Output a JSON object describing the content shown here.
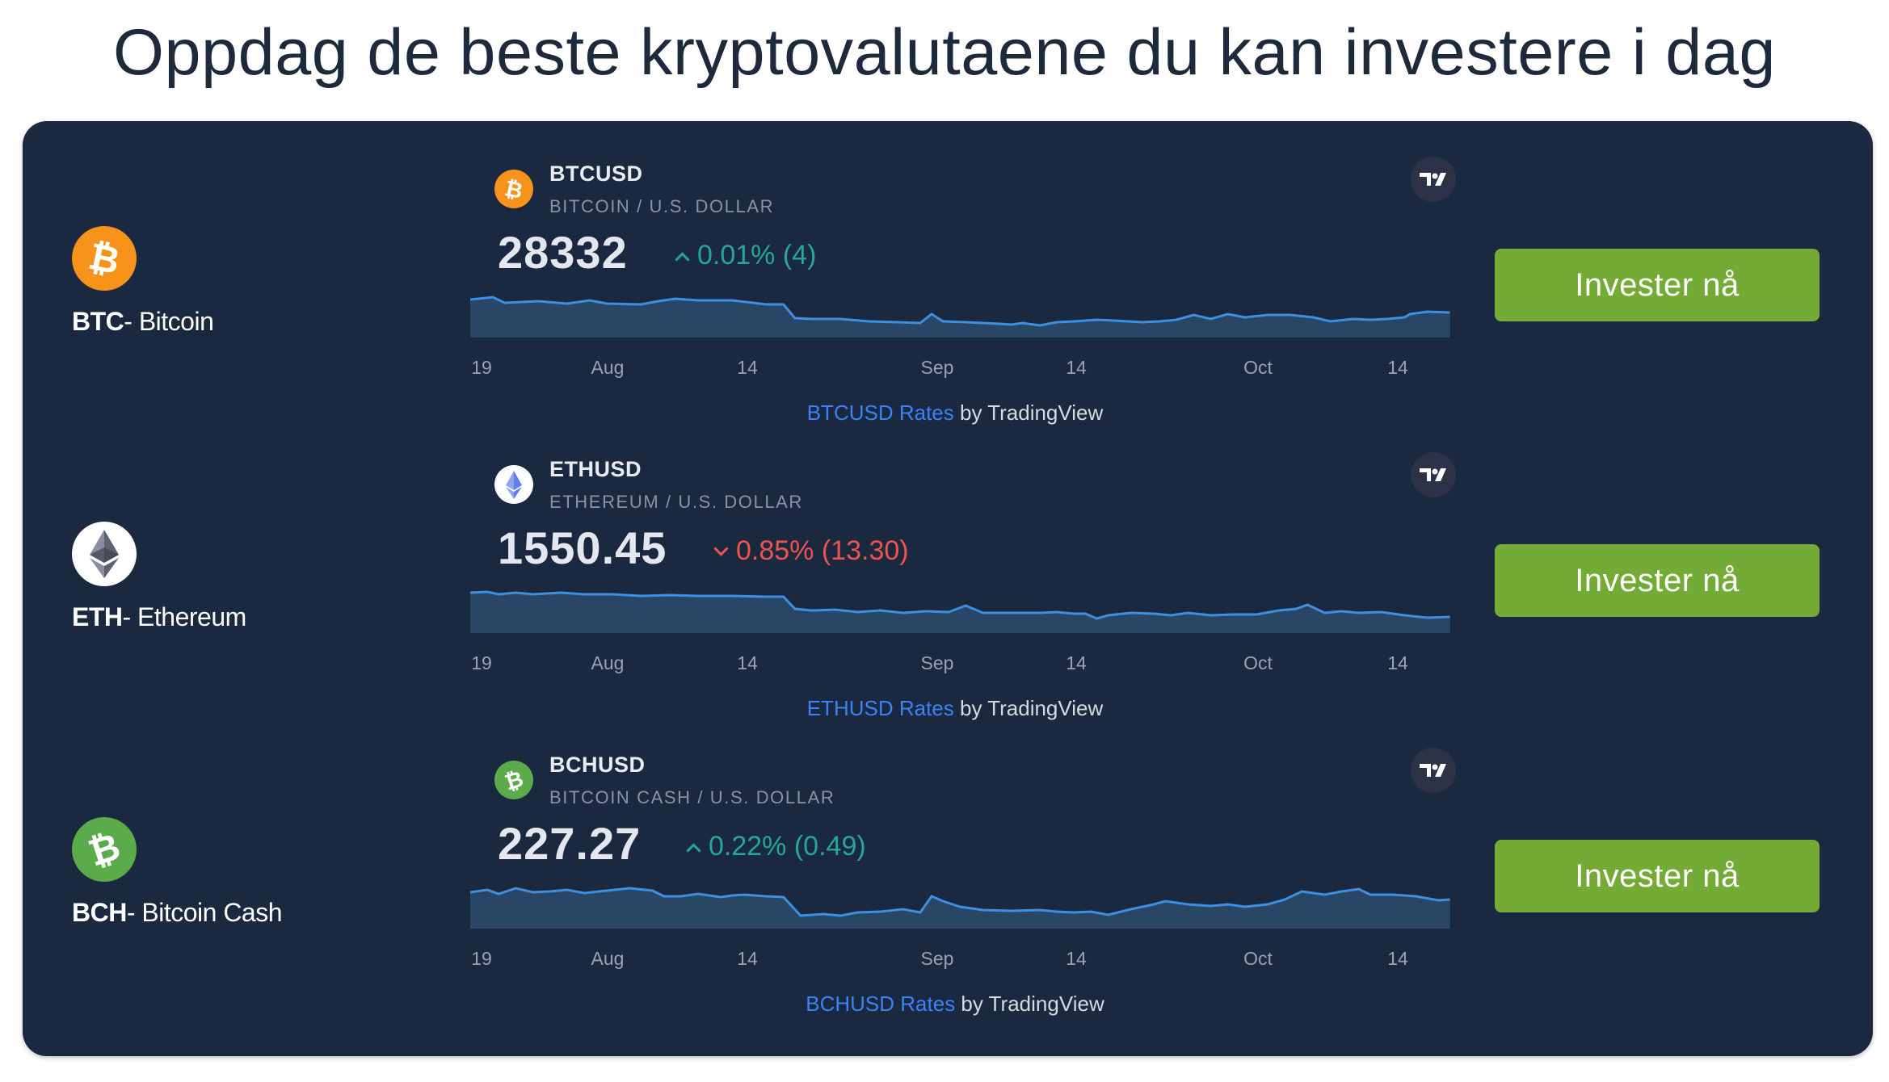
{
  "page": {
    "title": "Oppdag de beste kryptovalutaene du kan investere i dag"
  },
  "colors": {
    "panel_bg": "#1a2940",
    "button": "#74ab36",
    "up": "#26a69a",
    "down": "#ef5350",
    "link": "#3b82f6",
    "btc": "#f7931a",
    "bch": "#5aab4a"
  },
  "rows": [
    {
      "coin": {
        "ticker": "BTC",
        "name": "- Bitcoin",
        "icon": "bitcoin-icon"
      },
      "widget": {
        "symbol": "BTCUSD",
        "description": "BITCOIN / U.S. DOLLAR",
        "price": "28332",
        "change": "0.01% (4)",
        "direction": "up",
        "footer_link": "BTCUSD Rates",
        "footer_text": " by TradingView",
        "ticks": [
          "19",
          "Aug",
          "14",
          "Sep",
          "14",
          "Oct",
          "14"
        ]
      },
      "button": {
        "label": "Invester nå"
      }
    },
    {
      "coin": {
        "ticker": "ETH",
        "name": "- Ethereum",
        "icon": "ethereum-icon"
      },
      "widget": {
        "symbol": "ETHUSD",
        "description": "ETHEREUM / U.S. DOLLAR",
        "price": "1550.45",
        "change": "0.85% (13.30)",
        "direction": "down",
        "footer_link": "ETHUSD Rates",
        "footer_text": " by TradingView",
        "ticks": [
          "19",
          "Aug",
          "14",
          "Sep",
          "14",
          "Oct",
          "14"
        ]
      },
      "button": {
        "label": "Invester nå"
      }
    },
    {
      "coin": {
        "ticker": "BCH",
        "name": "- Bitcoin Cash",
        "icon": "bitcoin-cash-icon"
      },
      "widget": {
        "symbol": "BCHUSD",
        "description": "BITCOIN CASH / U.S. DOLLAR",
        "price": "227.27",
        "change": "0.22% (0.49)",
        "direction": "up",
        "footer_link": "BCHUSD Rates",
        "footer_text": " by TradingView",
        "ticks": [
          "19",
          "Aug",
          "14",
          "Sep",
          "14",
          "Oct",
          "14"
        ]
      },
      "button": {
        "label": "Invester nå"
      }
    }
  ]
}
